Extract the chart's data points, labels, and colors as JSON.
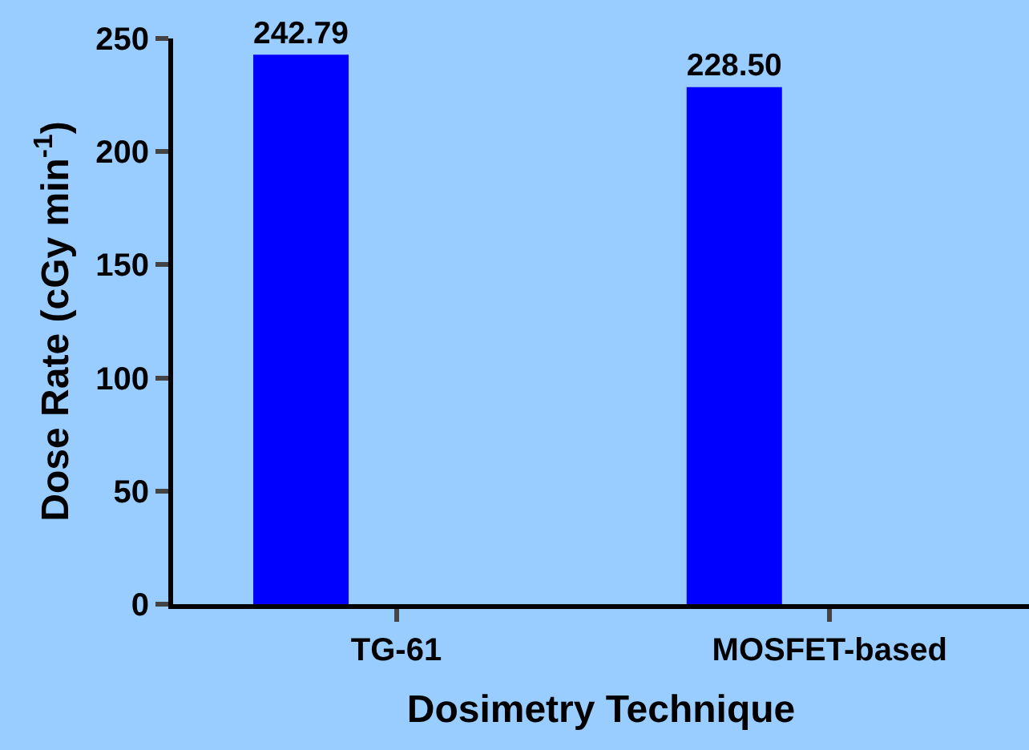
{
  "chart_data": {
    "type": "bar",
    "xlabel": "Dosimetry Technique",
    "ylabel": "Dose Rate (cGy min$^{-1}$)",
    "categories": [
      "TG-61",
      "MOSFET-based"
    ],
    "values": [
      242.79,
      228.5
    ],
    "value_labels": [
      "242.79",
      "228.50"
    ],
    "color": "#0000ff",
    "ylim": [
      0,
      250
    ],
    "yticks": [
      0,
      50,
      100,
      150,
      200,
      250
    ],
    "grid": false,
    "legend": false
  }
}
